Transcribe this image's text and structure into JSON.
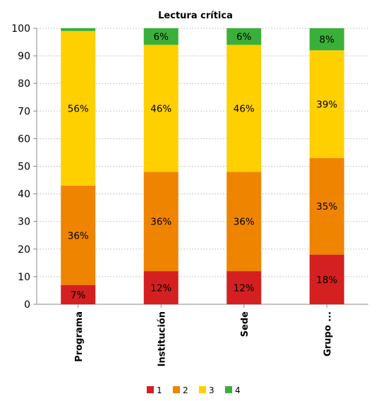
{
  "chart_data": {
    "type": "bar",
    "stacked": true,
    "title": "Lectura crítica",
    "categories": [
      "Programa",
      "Institución",
      "Sede",
      "Grupo ..."
    ],
    "series": [
      {
        "name": "1",
        "color": "#d42020",
        "values": [
          7,
          12,
          12,
          18
        ],
        "labels": [
          "7%",
          "12%",
          "12%",
          "18%"
        ]
      },
      {
        "name": "2",
        "color": "#ee8400",
        "values": [
          36,
          36,
          36,
          35
        ],
        "labels": [
          "36%",
          "36%",
          "36%",
          "35%"
        ]
      },
      {
        "name": "3",
        "color": "#ffd000",
        "values": [
          56,
          46,
          46,
          39
        ],
        "labels": [
          "56%",
          "46%",
          "46%",
          "39%"
        ]
      },
      {
        "name": "4",
        "color": "#3ab03a",
        "values": [
          1,
          6,
          6,
          8
        ],
        "labels": [
          "",
          "6%",
          "6%",
          "8%"
        ]
      }
    ],
    "ylim": [
      0,
      100
    ],
    "yticks": [
      0,
      10,
      20,
      30,
      40,
      50,
      60,
      70,
      80,
      90,
      100
    ],
    "xlabel": "",
    "ylabel": "",
    "grid": true,
    "legend_position": "bottom"
  }
}
